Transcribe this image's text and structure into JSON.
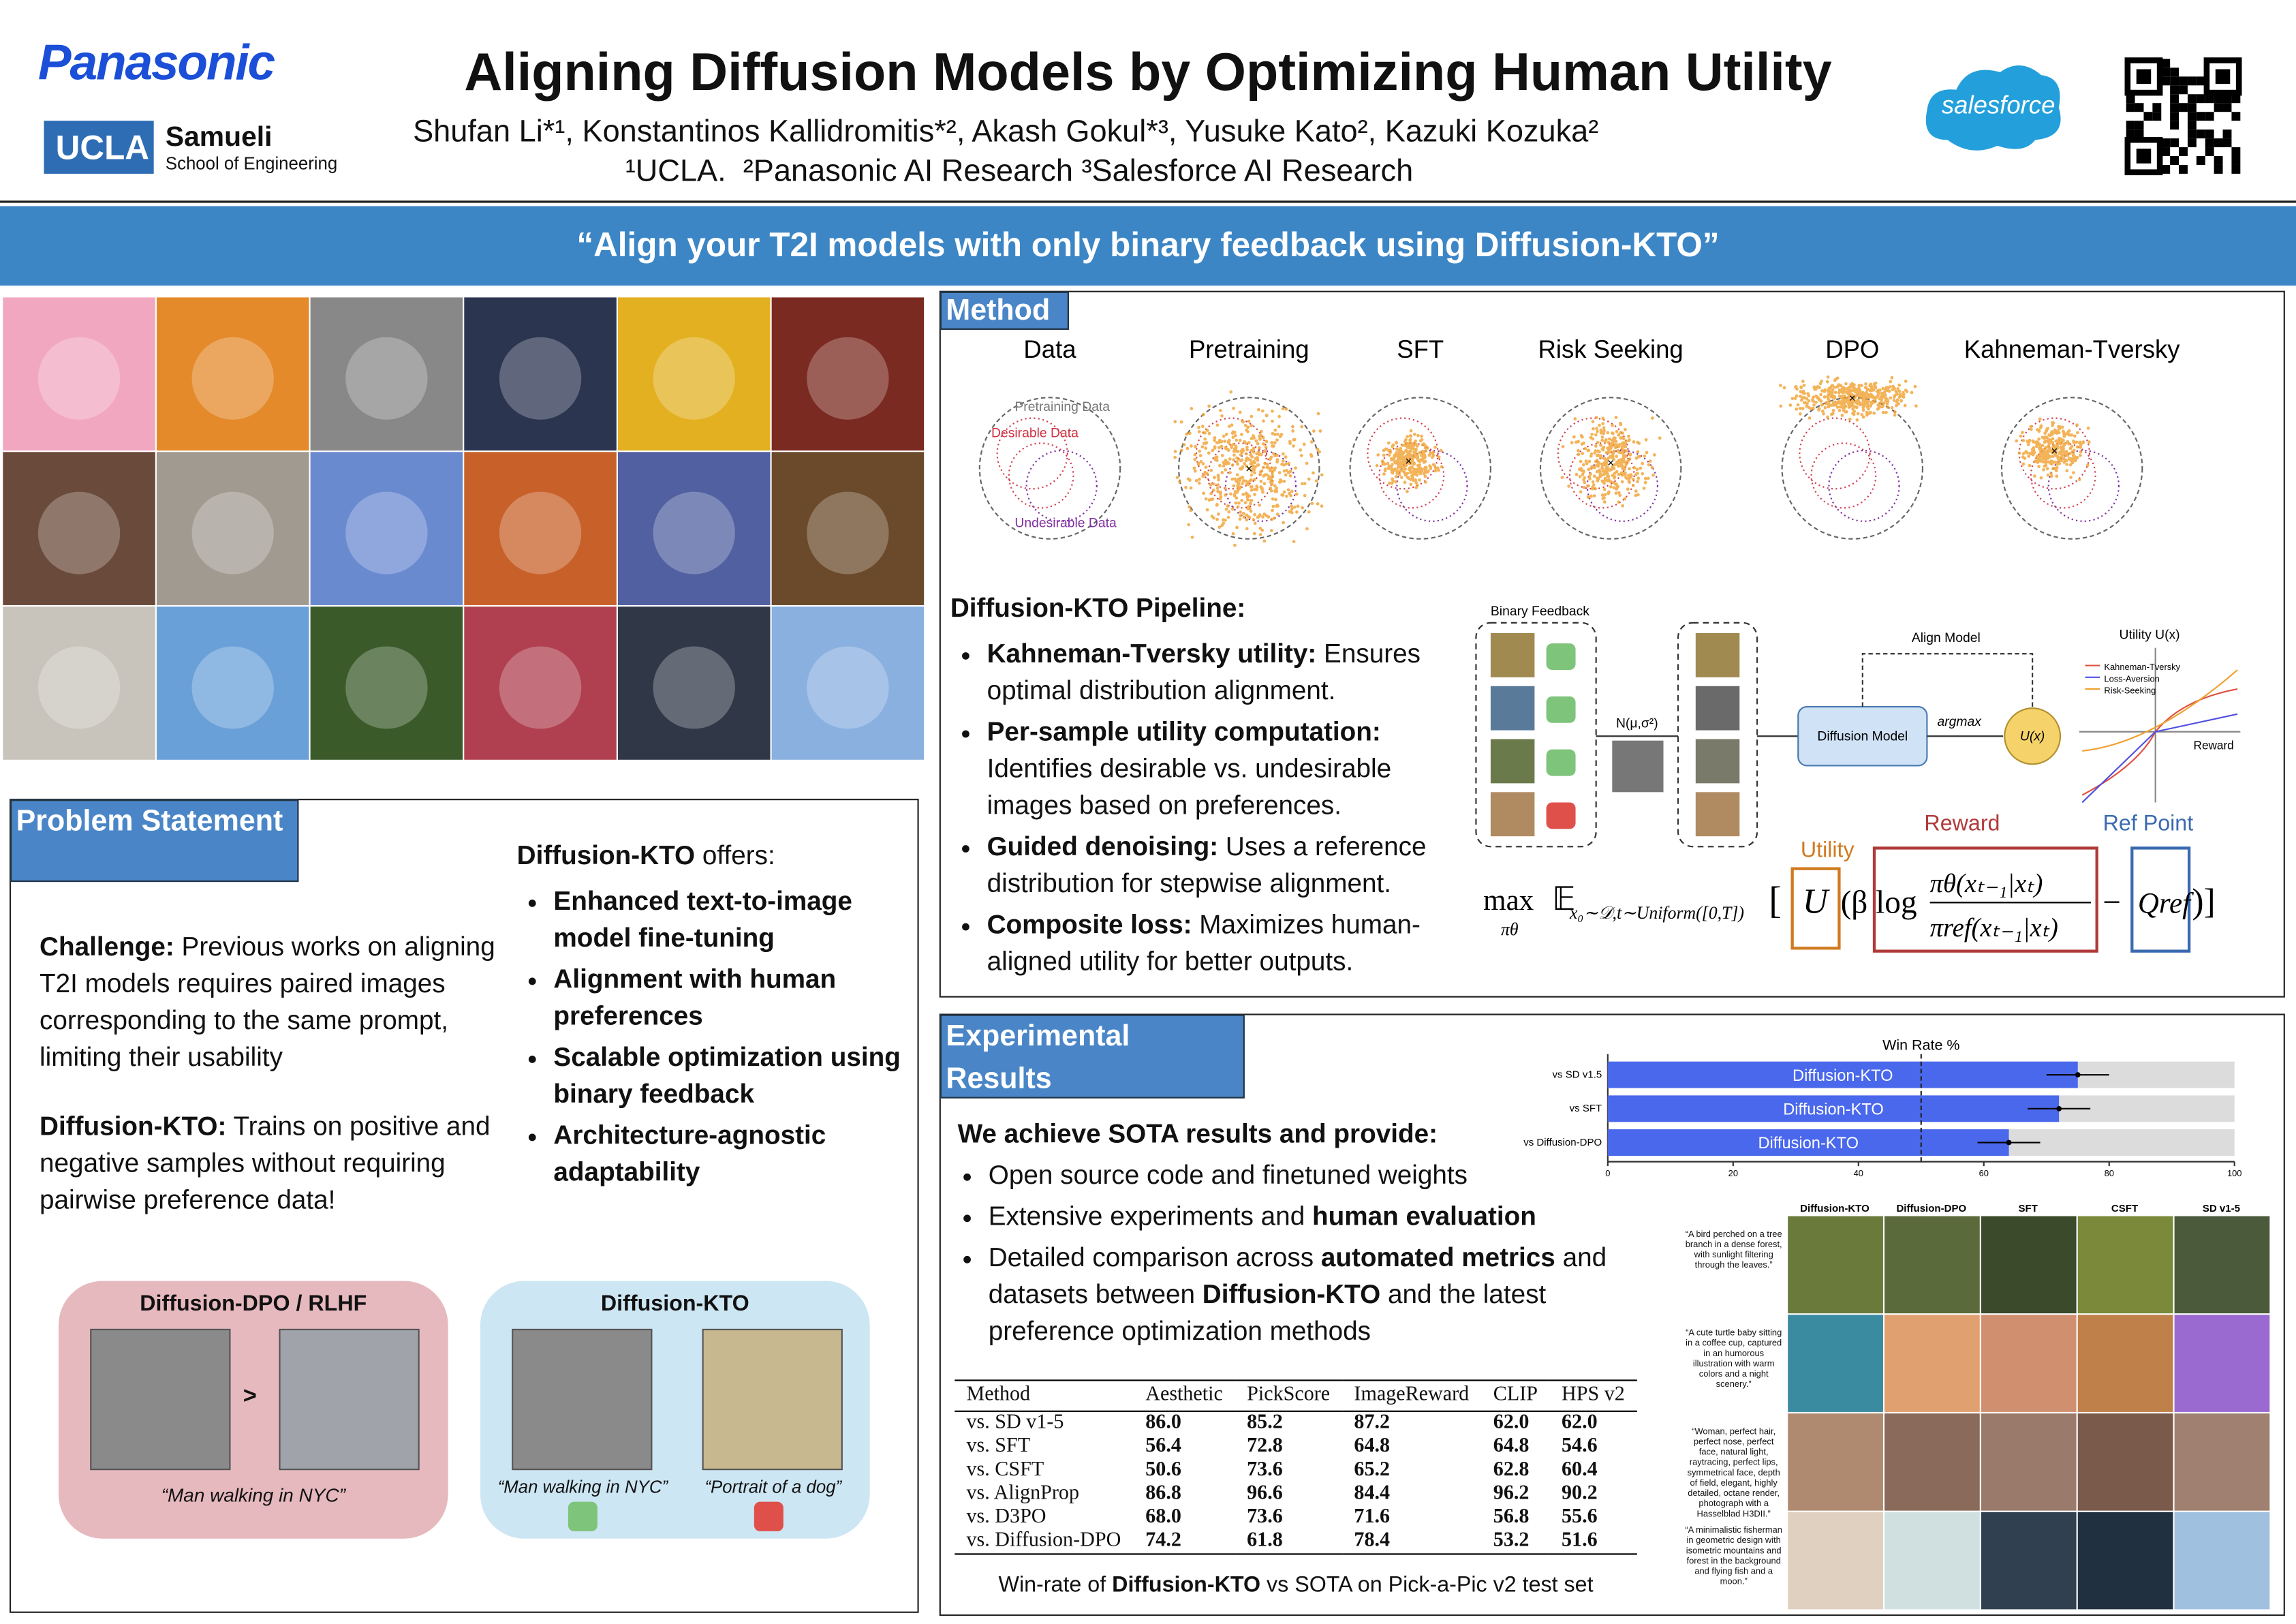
{
  "header": {
    "logo": "Panasonic",
    "ucla": "UCLA",
    "samueli": "Samueli",
    "school": "School of Engineering",
    "title": "Aligning Diffusion Models by Optimizing Human Utility",
    "authors": "Shufan Li*¹, Konstantinos Kallidromitis*², Akash Gokul*³, Yusuke Kato², Kazuki Kozuka²",
    "affiliations": "¹UCLA.  ²Panasonic AI Research ³Salesforce AI Research",
    "sponsor": "salesforce"
  },
  "banner": "“Align your T2I models with only binary feedback using Diffusion-KTO”",
  "problem": {
    "heading": "Problem Statement",
    "paragraphs": [
      [
        {
          "text": "Challenge:",
          "bold": true
        },
        {
          "text": " Previous works on aligning T2I models requires paired images corresponding to the same prompt, limiting their usability"
        }
      ],
      [
        {
          "text": "Diffusion-KTO:",
          "bold": true
        },
        {
          "text": " Trains on positive and negative samples without requiring pairwise preference data!"
        }
      ]
    ],
    "offers": [
      {
        "text": "Diffusion-KTO",
        "bold": true
      },
      {
        "text": " offers:"
      }
    ],
    "bullets": [
      "Enhanced text-to-image model fine-tuning",
      "Alignment with human preferences",
      "Scalable optimization using binary feedback",
      "Architecture-agnostic adaptability"
    ],
    "dpo_box": {
      "title": "Diffusion-DPO / RLHF",
      "symbol": ">",
      "caption": "“Man walking in NYC”"
    },
    "kto_box": {
      "title": "Diffusion-KTO",
      "captions": [
        "“Man walking in NYC”",
        "“Portrait of a dog”"
      ]
    }
  },
  "method": {
    "heading": "Method",
    "plots": [
      "Data",
      "Pretraining",
      "SFT",
      "Risk Seeking",
      "DPO",
      "Kahneman-Tversky"
    ],
    "legend": [
      "Pretraining Data",
      "Desirable Data",
      "Undesirable Data"
    ],
    "pipeline_title": "Diffusion-KTO Pipeline:",
    "bullets": [
      [
        {
          "text": "Kahneman-Tversky utility:",
          "bold": true
        },
        {
          "text": " Ensures optimal distribution alignment."
        }
      ],
      [
        {
          "text": "Per-sample utility computation:",
          "bold": true
        },
        {
          "text": " Identifies desirable vs. undesirable images based on preferences."
        }
      ],
      [
        {
          "text": "Guided denoising:",
          "bold": true
        },
        {
          "text": " Uses a reference distribution for stepwise alignment."
        }
      ],
      [
        {
          "text": "Composite loss:",
          "bold": true
        },
        {
          "text": " Maximizes human-aligned utility for better outputs."
        }
      ]
    ],
    "diagram": {
      "feedback": "Binary Feedback",
      "noise": "N(μ,σ²)",
      "align": "Align Model",
      "model": "Diffusion Model",
      "argmax": "argmax",
      "utility_node": "U(x)",
      "plot_title": "Utility U(x)",
      "curves": [
        "Kahneman-Tversky",
        "Loss-Aversion",
        "Risk-Seeking"
      ],
      "axis": "Reward",
      "reward": "Reward",
      "utility": "Utility",
      "ref": "Ref Point"
    },
    "formula": {
      "max": "max",
      "sub": "πθ",
      "expect": "𝔼",
      "expect_sub": "x₀∼𝒟,t∼Uniform([0,T])",
      "open": "[",
      "u": "U",
      "paren": "(β log",
      "num": "πθ(xₜ₋₁|xₜ)",
      "den": "πref(xₜ₋₁|xₜ)",
      "minus": "−",
      "q": "Qref",
      "close": ")]"
    }
  },
  "results": {
    "heading": "Experimental Results",
    "win_rate": {
      "title": "Win Rate %",
      "categories": [
        "vs SD v1.5",
        "vs SFT",
        "vs Diffusion-DPO"
      ],
      "values": [
        75,
        72,
        64
      ],
      "errors": [
        5,
        5,
        5
      ],
      "bar_label": "Diffusion-KTO",
      "color": "#4a68ec",
      "xlim": [
        0,
        100
      ],
      "xticks": [
        0,
        20,
        40,
        60,
        80,
        100
      ],
      "reference": 50
    },
    "intro": "We achieve SOTA results and provide:",
    "bullets": [
      [
        {
          "text": "Open source code and finetuned weights"
        }
      ],
      [
        {
          "text": "Extensive experiments and "
        },
        {
          "text": "human evaluation",
          "bold": true
        }
      ],
      [
        {
          "text": "Detailed comparison across "
        },
        {
          "text": "automated metrics",
          "bold": true
        },
        {
          "text": " and datasets between "
        },
        {
          "text": "Diffusion-KTO",
          "bold": true
        },
        {
          "text": " and the latest preference optimization methods"
        }
      ]
    ],
    "table": {
      "header": [
        "Method",
        "Aesthetic",
        "PickScore",
        "ImageReward",
        "CLIP",
        "HPS v2"
      ],
      "rows": [
        [
          "vs. SD v1-5",
          "86.0",
          "85.2",
          "87.2",
          "62.0",
          "62.0"
        ],
        [
          "vs. SFT",
          "56.4",
          "72.8",
          "64.8",
          "64.8",
          "54.6"
        ],
        [
          "vs. CSFT",
          "50.6",
          "73.6",
          "65.2",
          "62.8",
          "60.4"
        ],
        [
          "vs. AlignProp",
          "86.8",
          "96.6",
          "84.4",
          "96.2",
          "90.2"
        ],
        [
          "vs. D3PO",
          "68.0",
          "73.6",
          "71.6",
          "56.8",
          "55.6"
        ],
        [
          "vs. Diffusion-DPO",
          "74.2",
          "61.8",
          "78.4",
          "53.2",
          "51.6"
        ]
      ]
    },
    "caption": [
      {
        "text": "Win-rate of "
      },
      {
        "text": "Diffusion-KTO",
        "bold": true
      },
      {
        "text": " vs SOTA on Pick-a-Pic v2 test set"
      }
    ],
    "comparison": {
      "columns": [
        "Diffusion-KTO",
        "Diffusion-DPO",
        "SFT",
        "CSFT",
        "SD v1-5"
      ],
      "prompts": [
        "“A bird perched on a tree branch in a dense forest, with sunlight filtering through the leaves.”",
        "“A cute turtle baby sitting in a coffee cup, captured in an humorous illustration with warm colors and a night scenery.”",
        "“Woman, perfect hair, perfect nose, perfect face, natural light, raytracing, perfect lips, symmetrical face, depth of field, elegant, highly detailed, octane render, photograph with a Hasselblad H3DII.”",
        "“A minimalistic fisherman in geometric design with isometric mountains and forest in the background and flying fish and a moon.”"
      ]
    }
  }
}
